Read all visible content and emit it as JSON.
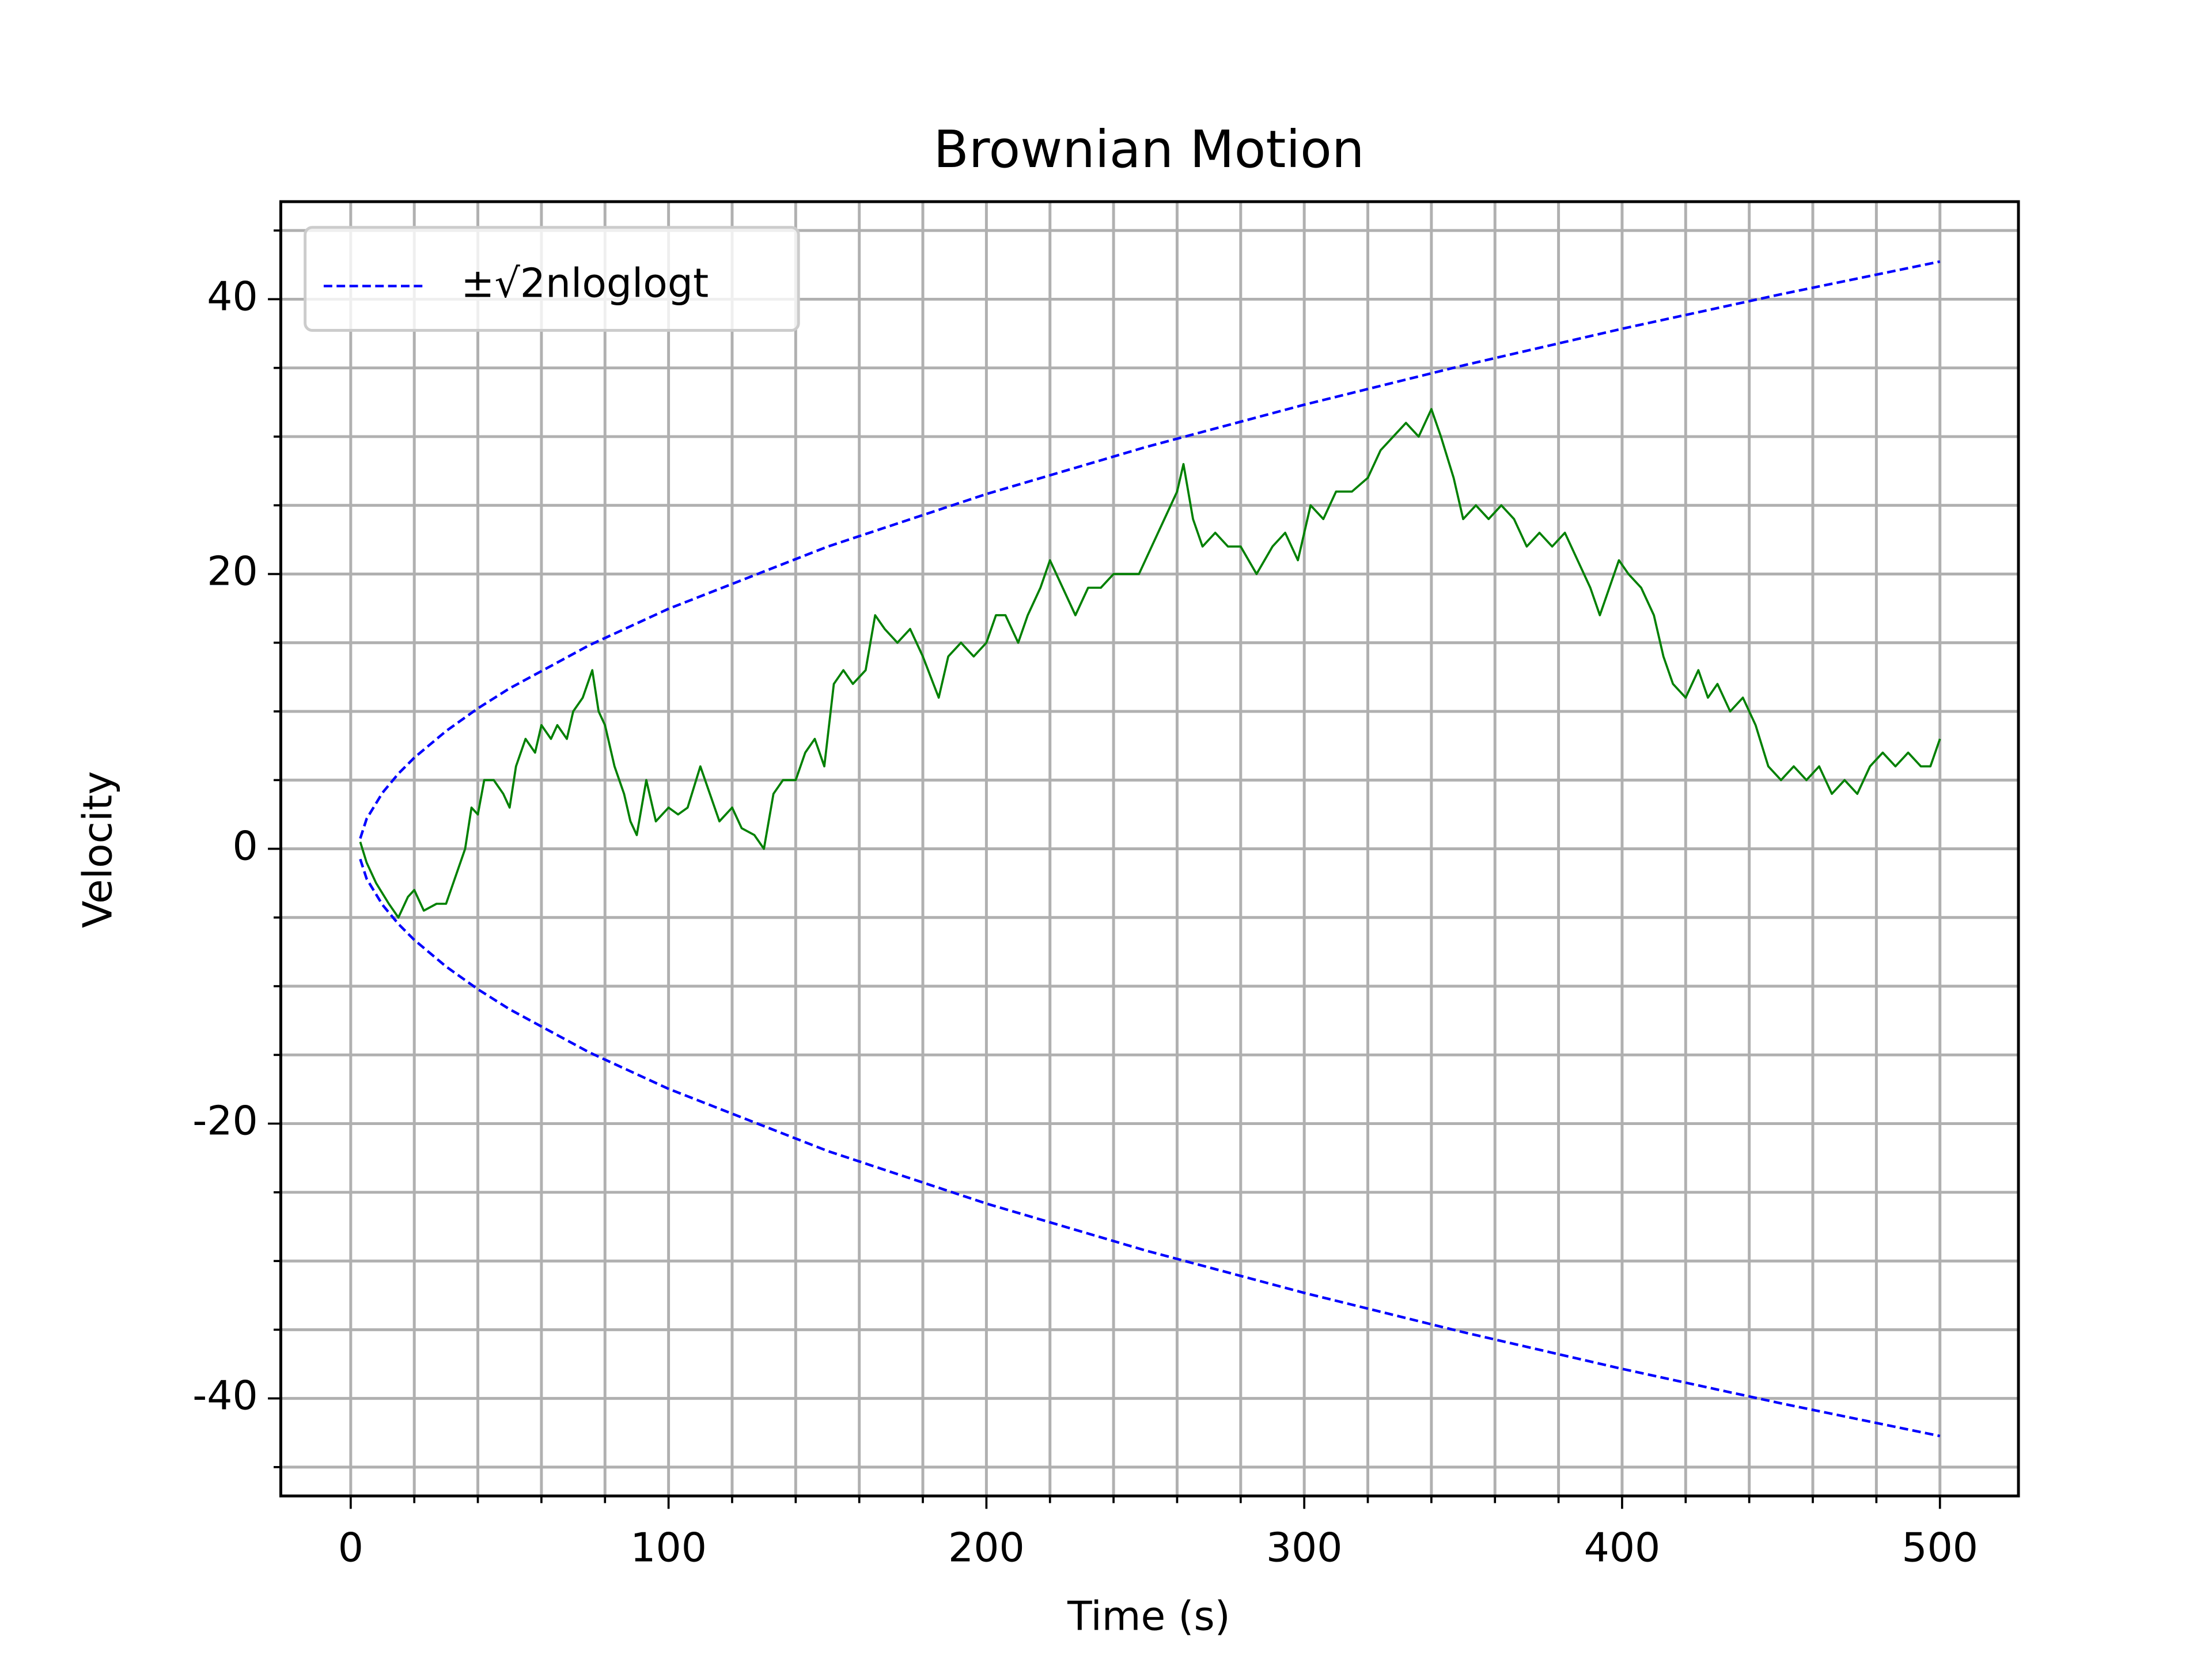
{
  "chart_data": {
    "type": "line",
    "title": "Brownian Motion",
    "xlabel": "Time (s)",
    "ylabel": "Velocity",
    "xlim": [
      -22,
      524.7
    ],
    "ylim": [
      -47.1,
      47.1
    ],
    "xticks": [
      0,
      100,
      200,
      300,
      400,
      500
    ],
    "yticks": [
      -40,
      -20,
      0,
      20,
      40
    ],
    "xminorticks": [
      20,
      40,
      60,
      80,
      120,
      140,
      160,
      180,
      220,
      240,
      260,
      280,
      320,
      340,
      360,
      380,
      420,
      440,
      460,
      480
    ],
    "yminorticks": [
      -45,
      -35,
      -30,
      -25,
      -15,
      -10,
      -5,
      5,
      10,
      15,
      25,
      30,
      35,
      45
    ],
    "grid": true,
    "legend": "upper left",
    "series": [
      {
        "name": "±√2nloglogt",
        "color": "#0000ff",
        "linestyle": "dashed",
        "x": [
          3,
          5,
          10,
          15,
          20,
          30,
          40,
          50,
          75,
          100,
          150,
          200,
          250,
          300,
          350,
          400,
          450,
          500
        ],
        "values": [
          0.75,
          2.18,
          4.08,
          5.47,
          6.63,
          8.57,
          10.22,
          11.68,
          14.81,
          17.47,
          21.99,
          25.82,
          29.23,
          32.32,
          35.18,
          37.85,
          40.36,
          42.74
        ]
      },
      {
        "color": "#0000ff",
        "linestyle": "dashed",
        "x": [
          3,
          5,
          10,
          15,
          20,
          30,
          40,
          50,
          75,
          100,
          150,
          200,
          250,
          300,
          350,
          400,
          450,
          500
        ],
        "values": [
          -0.75,
          -2.18,
          -4.08,
          -5.47,
          -6.63,
          -8.57,
          -10.22,
          -11.68,
          -14.81,
          -17.47,
          -21.99,
          -25.82,
          -29.23,
          -32.32,
          -35.18,
          -37.85,
          -40.36,
          -42.74
        ]
      },
      {
        "color": "#008000",
        "linestyle": "solid",
        "x": [
          3,
          5,
          8,
          12,
          15,
          18,
          20,
          23,
          27,
          30,
          33,
          36,
          38,
          40,
          42,
          45,
          48,
          50,
          52,
          55,
          58,
          60,
          63,
          65,
          68,
          70,
          73,
          76,
          78,
          80,
          83,
          86,
          88,
          90,
          93,
          96,
          100,
          103,
          106,
          110,
          113,
          116,
          120,
          123,
          127,
          130,
          133,
          136,
          140,
          143,
          146,
          149,
          152,
          155,
          158,
          162,
          165,
          168,
          172,
          176,
          180,
          185,
          188,
          192,
          196,
          200,
          203,
          206,
          210,
          213,
          217,
          220,
          224,
          228,
          232,
          236,
          240,
          244,
          248,
          252,
          256,
          260,
          262,
          265,
          268,
          272,
          276,
          280,
          285,
          290,
          294,
          298,
          302,
          306,
          310,
          315,
          320,
          324,
          328,
          332,
          336,
          340,
          343,
          347,
          350,
          354,
          358,
          362,
          366,
          370,
          374,
          378,
          382,
          386,
          390,
          393,
          396,
          399,
          402,
          406,
          410,
          413,
          416,
          420,
          424,
          427,
          430,
          434,
          438,
          442,
          446,
          450,
          454,
          458,
          462,
          466,
          470,
          474,
          478,
          482,
          486,
          490,
          494,
          497,
          500
        ],
        "values": [
          0.5,
          -1,
          -2.5,
          -4,
          -5,
          -3.5,
          -3,
          -4.5,
          -4,
          -4,
          -2,
          0,
          3,
          2.5,
          5,
          5,
          4,
          3,
          6,
          8,
          7,
          9,
          8,
          9,
          8,
          10,
          11,
          13,
          10,
          9,
          6,
          4,
          2,
          1,
          5,
          2,
          3,
          2.5,
          3,
          6,
          4,
          2,
          3,
          1.5,
          1,
          0,
          4,
          5,
          5,
          7,
          8,
          6,
          12,
          13,
          12,
          13,
          17,
          16,
          15,
          16,
          14,
          11,
          14,
          15,
          14,
          15,
          17,
          17,
          15,
          17,
          19,
          21,
          19,
          17,
          19,
          19,
          20,
          20,
          20,
          22,
          24,
          26,
          28,
          24,
          22,
          23,
          22,
          22,
          20,
          22,
          23,
          21,
          25,
          24,
          26,
          26,
          27,
          29,
          30,
          31,
          30,
          32,
          30,
          27,
          24,
          25,
          24,
          25,
          24,
          22,
          23,
          22,
          23,
          21,
          19,
          17,
          19,
          21,
          20,
          19,
          17,
          14,
          12,
          11,
          13,
          11,
          12,
          10,
          11,
          9,
          6,
          5,
          6,
          5,
          6,
          4,
          5,
          4,
          6,
          7,
          6,
          7,
          6,
          6,
          8
        ]
      }
    ]
  }
}
